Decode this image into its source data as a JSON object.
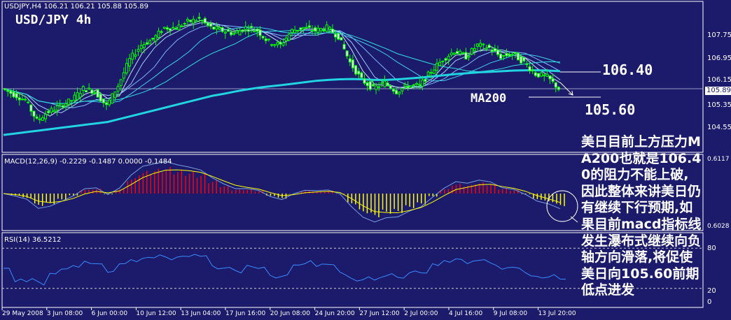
{
  "header": {
    "symbol_line": "USDJPY,H4  106.21 106.21 105.88 105.89",
    "title": "USD/JPY  4h"
  },
  "annotations": {
    "resistance": "106.40",
    "support": "105.60",
    "ma_label": "MA200",
    "note": "美日目前上方压力MA200也就是106.40的阻力不能上破,因此整体来讲美日仍有继续下行预期,如果目前macd指标线发生瀑布式继续向负轴方向滑落,将促使美日向105.60前期低点进发"
  },
  "colors": {
    "background": "#1b1a6b",
    "candle": "#00ff00",
    "ma200": "#22d3e0",
    "macd_pos": "#ff0000",
    "macd_neg": "#ffff00",
    "signal": "#ffff00",
    "rsi": "#3a8cff"
  },
  "chart_data": [
    {
      "type": "candlestick",
      "title": "USDJPY,H4",
      "ylim": [
        104.2,
        108.6
      ],
      "y_ticks": [
        "107.75",
        "106.95",
        "106.15",
        "105.35",
        "104.55"
      ],
      "current_price": "105.89",
      "x_ticks": [
        "29 May 2008",
        "3 Jun 08:00",
        "6 Jun 00:00",
        "10 Jun 12:00",
        "13 Jun 04:00",
        "17 Jun 16:00",
        "20 Jun 08:00",
        "24 Jun 20:00",
        "27 Jun 12:00",
        "2 Jul 00:00",
        "4 Jul 16:00",
        "9 Jul 08:00",
        "13 Jul 20:00"
      ],
      "close": [
        105.9,
        105.7,
        105.5,
        104.8,
        105.1,
        105.3,
        105.5,
        105.9,
        105.8,
        105.3,
        106.0,
        106.9,
        107.4,
        107.6,
        108.0,
        108.0,
        108.2,
        108.3,
        108.0,
        107.9,
        107.8,
        108.0,
        107.9,
        107.5,
        107.4,
        107.9,
        108.0,
        107.9,
        108.0,
        107.7,
        106.8,
        106.2,
        105.9,
        106.1,
        105.8,
        106.0,
        106.0,
        106.5,
        106.9,
        107.2,
        107.0,
        107.4,
        107.3,
        107.0,
        107.1,
        106.8,
        106.4,
        106.3,
        105.9
      ],
      "ma200": [
        104.3,
        104.35,
        104.4,
        104.45,
        104.5,
        104.55,
        104.6,
        104.65,
        104.7,
        104.75,
        104.85,
        104.95,
        105.05,
        105.15,
        105.25,
        105.35,
        105.45,
        105.55,
        105.65,
        105.72,
        105.8,
        105.87,
        105.93,
        105.98,
        106.02,
        106.07,
        106.12,
        106.17,
        106.2,
        106.22,
        106.23,
        106.22,
        106.2,
        106.2,
        106.22,
        106.25,
        106.28,
        106.32,
        106.36,
        106.4,
        106.43,
        106.46,
        106.48,
        106.5,
        106.52,
        106.53,
        106.53,
        106.52,
        106.5
      ]
    },
    {
      "type": "bar",
      "title": "MACD(12,26,9) -0.2229 -0.1487 0.0000 -0.1484",
      "y_ticks": [
        "0.6117",
        "0.6028"
      ]
    },
    {
      "type": "line",
      "title": "RSI(14) 36.5212",
      "y_ticks": [
        "80",
        "20",
        "0"
      ],
      "levels": [
        80,
        20
      ]
    }
  ]
}
